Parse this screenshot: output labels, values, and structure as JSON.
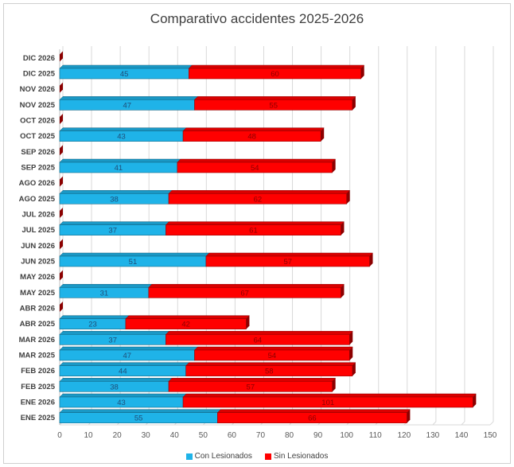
{
  "chart_data": {
    "type": "bar",
    "orientation": "horizontal",
    "stacked": true,
    "title": "Comparativo accidentes 2025-2026",
    "categories": [
      "ENE 2025",
      "ENE 2026",
      "FEB 2025",
      "FEB 2026",
      "MAR 2025",
      "MAR 2026",
      "ABR 2025",
      "ABR 2026",
      "MAY 2025",
      "MAY 2026",
      "JUN 2025",
      "JUN 2026",
      "JUL 2025",
      "JUL 2026",
      "AGO 2025",
      "AGO 2026",
      "SEP 2025",
      "SEP 2026",
      "OCT 2025",
      "OCT 2026",
      "NOV 2025",
      "NOV 2026",
      "DIC 2025",
      "DIC 2026"
    ],
    "series": [
      {
        "name": "Con Lesionados",
        "color": "#1fb3e8",
        "values": [
          55,
          43,
          38,
          44,
          47,
          37,
          23,
          0,
          31,
          0,
          51,
          0,
          37,
          0,
          38,
          0,
          41,
          0,
          43,
          0,
          47,
          0,
          45,
          0
        ]
      },
      {
        "name": "Sin Lesionados",
        "color": "#ff0000",
        "values": [
          66,
          101,
          57,
          58,
          54,
          64,
          42,
          0,
          67,
          0,
          57,
          0,
          61,
          0,
          62,
          0,
          54,
          0,
          48,
          0,
          55,
          0,
          60,
          0
        ]
      }
    ],
    "xlim": [
      0,
      150
    ],
    "xticks": [
      "0",
      "10",
      "20",
      "30",
      "40",
      "50",
      "60",
      "70",
      "80",
      "90",
      "100",
      "110",
      "120",
      "130",
      "140",
      "150"
    ],
    "grid": true,
    "legend_position": "bottom"
  }
}
